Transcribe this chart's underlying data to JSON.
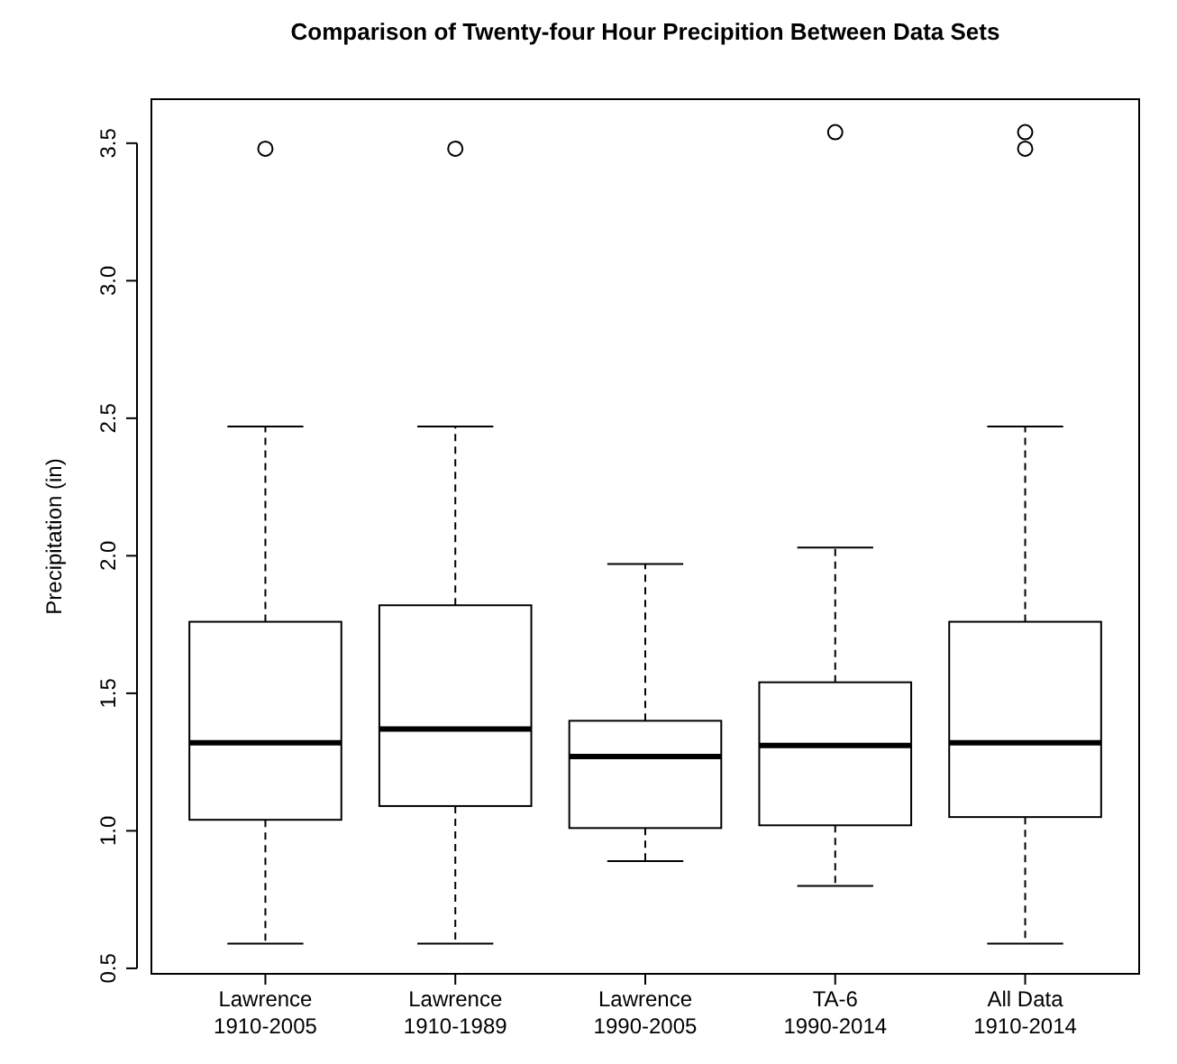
{
  "chart_data": {
    "type": "box",
    "title": "Comparison of Twenty-four Hour Precipition Between Data Sets",
    "ylabel": "Precipitation (in)",
    "categories": [
      "Lawrence\n1910-2005",
      "Lawrence\n1910-1989",
      "Lawrence\n1990-2005",
      "TA-6\n1990-2014",
      "All Data\n1910-2014"
    ],
    "boxes": [
      {
        "low": 0.59,
        "q1": 1.04,
        "median": 1.32,
        "q3": 1.76,
        "high": 2.47,
        "outliers": [
          3.48
        ]
      },
      {
        "low": 0.59,
        "q1": 1.09,
        "median": 1.37,
        "q3": 1.82,
        "high": 2.47,
        "outliers": [
          3.48
        ]
      },
      {
        "low": 0.89,
        "q1": 1.01,
        "median": 1.27,
        "q3": 1.4,
        "high": 1.97
      },
      {
        "low": 0.8,
        "q1": 1.02,
        "median": 1.31,
        "q3": 1.54,
        "high": 2.03,
        "outliers": [
          3.54
        ]
      },
      {
        "low": 0.59,
        "q1": 1.05,
        "median": 1.32,
        "q3": 1.76,
        "high": 2.47,
        "outliers": [
          3.48,
          3.54
        ]
      }
    ],
    "ylim": [
      0.48,
      3.66
    ],
    "yticks": [
      0.5,
      {
        "value": 1,
        "label": "1.0"
      },
      1.5,
      {
        "value": 2,
        "label": "2.0"
      },
      2.5,
      {
        "value": 3,
        "label": "3.0"
      },
      3.5
    ],
    "grid": false
  }
}
